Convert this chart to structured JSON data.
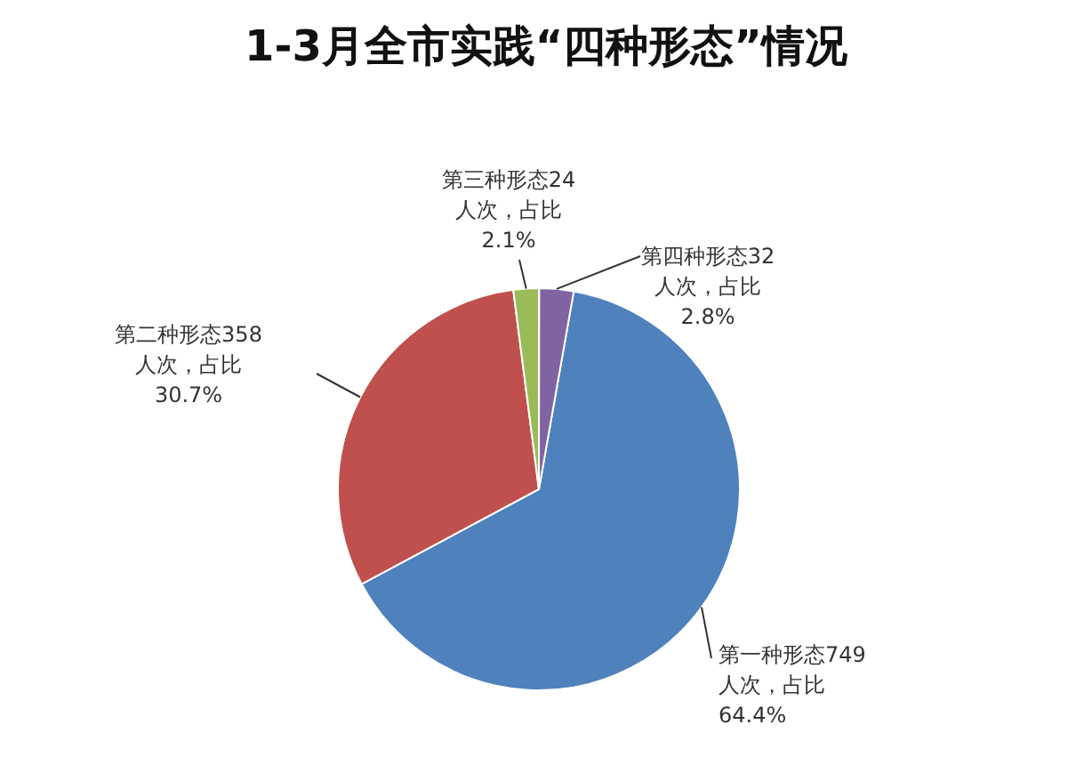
{
  "chart_data": {
    "type": "pie",
    "title": "1-3月全市实践“四种形态”情况",
    "categories": [
      "第一种形态",
      "第二种形态",
      "第三种形态",
      "第四种形态"
    ],
    "values": [
      749,
      358,
      24,
      32
    ],
    "value_labels": [
      "749\n人次，占比\n64.4%",
      "358\n人次，占比\n30.7%",
      "24\n人次，占比\n2.1%",
      "32\n人次，占比\n2.8%"
    ],
    "colors": [
      "#4f81bd",
      "#c0504d",
      "#9bbb59",
      "#8064a2"
    ],
    "legend": false
  }
}
